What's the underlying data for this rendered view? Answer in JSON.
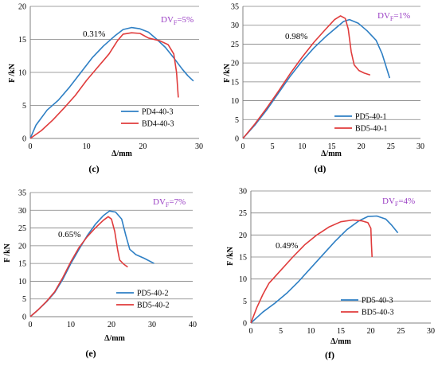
{
  "chart_data": [
    {
      "type": "line",
      "panel_label": "(c)",
      "annotation": "0.31%",
      "dv_label": {
        "prefix": "DV",
        "sub": "F",
        "suffix": "=5%"
      },
      "dv_color": "#9a3fc4",
      "xlabel": "Δ/mm",
      "ylabel": "F /kN",
      "xlim": [
        0,
        30
      ],
      "ylim": [
        0,
        20
      ],
      "xticks": [
        0,
        10,
        20,
        30
      ],
      "yticks": [
        0,
        5,
        10,
        15,
        20
      ],
      "legend_position": "bottom-right",
      "series": [
        {
          "name": "PD4-40-3",
          "color": "#2e7fc4",
          "points": [
            [
              0,
              0
            ],
            [
              1,
              2
            ],
            [
              3,
              4.3
            ],
            [
              5,
              5.8
            ],
            [
              7,
              7.8
            ],
            [
              9,
              10
            ],
            [
              11,
              12.2
            ],
            [
              13,
              14
            ],
            [
              15,
              15.5
            ],
            [
              16.5,
              16.5
            ],
            [
              18,
              16.8
            ],
            [
              19.5,
              16.6
            ],
            [
              21,
              16.1
            ],
            [
              22.5,
              15
            ],
            [
              24,
              13.8
            ],
            [
              25.5,
              12.2
            ],
            [
              27,
              10.5
            ],
            [
              28,
              9.5
            ],
            [
              29,
              8.7
            ]
          ]
        },
        {
          "name": "BD4-40-3",
          "color": "#e03c3c",
          "points": [
            [
              0,
              0
            ],
            [
              2,
              1.2
            ],
            [
              4,
              2.8
            ],
            [
              6,
              4.6
            ],
            [
              8,
              6.5
            ],
            [
              10,
              8.8
            ],
            [
              12,
              10.8
            ],
            [
              14,
              12.8
            ],
            [
              15.5,
              14.8
            ],
            [
              16.5,
              15.8
            ],
            [
              18,
              16
            ],
            [
              19.5,
              15.9
            ],
            [
              21,
              15.2
            ],
            [
              23,
              14.8
            ],
            [
              24.5,
              14.2
            ],
            [
              25.5,
              12.8
            ],
            [
              26,
              10
            ],
            [
              26.3,
              6.2
            ]
          ]
        }
      ]
    },
    {
      "type": "line",
      "panel_label": "(d)",
      "annotation": "0.98%",
      "dv_label": {
        "prefix": "DV",
        "sub": "F",
        "suffix": "=1%"
      },
      "dv_color": "#9a3fc4",
      "xlabel": "Δ/mm",
      "ylabel": "F /kN",
      "xlim": [
        0,
        30
      ],
      "ylim": [
        0,
        35
      ],
      "xticks": [
        0,
        5,
        10,
        15,
        20,
        25,
        30
      ],
      "yticks": [
        0,
        5,
        10,
        15,
        20,
        25,
        30,
        35
      ],
      "legend_position": "bottom-right",
      "series": [
        {
          "name": "PD5-40-1",
          "color": "#2e7fc4",
          "points": [
            [
              0,
              0
            ],
            [
              2,
              3.5
            ],
            [
              4,
              7.5
            ],
            [
              6,
              12
            ],
            [
              8,
              16.5
            ],
            [
              10,
              20.5
            ],
            [
              12,
              24
            ],
            [
              14,
              27
            ],
            [
              15.5,
              29
            ],
            [
              17,
              31
            ],
            [
              18,
              31.5
            ],
            [
              19.5,
              30.5
            ],
            [
              21,
              28.5
            ],
            [
              22.5,
              26
            ],
            [
              23.5,
              22.5
            ],
            [
              24.2,
              19
            ],
            [
              24.8,
              16
            ]
          ]
        },
        {
          "name": "BD5-40-1",
          "color": "#e03c3c",
          "points": [
            [
              0,
              0
            ],
            [
              2,
              3.8
            ],
            [
              4,
              8
            ],
            [
              6,
              12.5
            ],
            [
              8,
              17.2
            ],
            [
              10,
              21.5
            ],
            [
              12,
              25.5
            ],
            [
              14,
              29
            ],
            [
              15.5,
              31.5
            ],
            [
              16.5,
              32.5
            ],
            [
              17.3,
              31.8
            ],
            [
              17.8,
              29
            ],
            [
              18.3,
              23
            ],
            [
              18.8,
              19.5
            ],
            [
              19.6,
              18
            ],
            [
              20.5,
              17.3
            ],
            [
              21.5,
              16.8
            ]
          ]
        }
      ]
    },
    {
      "type": "line",
      "panel_label": "(e)",
      "annotation": "0.65%",
      "dv_label": {
        "prefix": "DV",
        "sub": "F",
        "suffix": "=7%"
      },
      "dv_color": "#9a3fc4",
      "xlabel": "Δ/mm",
      "ylabel": "F /kN",
      "xlim": [
        0,
        40
      ],
      "ylim": [
        0,
        35
      ],
      "xticks": [
        0,
        10,
        20,
        30,
        40
      ],
      "yticks": [
        0,
        5,
        10,
        15,
        20,
        25,
        30,
        35
      ],
      "legend_position": "bottom-right",
      "series": [
        {
          "name": "PD5-40-2",
          "color": "#2e7fc4",
          "points": [
            [
              0,
              0
            ],
            [
              2,
              2
            ],
            [
              4,
              4.2
            ],
            [
              6,
              6.8
            ],
            [
              8,
              10.5
            ],
            [
              10,
              15
            ],
            [
              12,
              19
            ],
            [
              14,
              22.8
            ],
            [
              16,
              26
            ],
            [
              18,
              28.5
            ],
            [
              19.5,
              29.8
            ],
            [
              21,
              29.5
            ],
            [
              22.5,
              27.5
            ],
            [
              23.5,
              23
            ],
            [
              24.5,
              19
            ],
            [
              26,
              17.5
            ],
            [
              28,
              16.5
            ],
            [
              30.5,
              15
            ]
          ]
        },
        {
          "name": "BD5-40-2",
          "color": "#e03c3c",
          "points": [
            [
              0,
              0
            ],
            [
              2,
              2
            ],
            [
              4,
              4.3
            ],
            [
              6,
              7
            ],
            [
              8,
              11
            ],
            [
              10,
              15.5
            ],
            [
              12,
              19.5
            ],
            [
              14,
              22.5
            ],
            [
              16,
              25
            ],
            [
              18,
              27.2
            ],
            [
              19.2,
              28.2
            ],
            [
              20,
              27.5
            ],
            [
              20.8,
              24
            ],
            [
              21.5,
              19
            ],
            [
              22,
              16
            ],
            [
              23,
              14.8
            ],
            [
              24,
              14
            ]
          ]
        }
      ]
    },
    {
      "type": "line",
      "panel_label": "(f)",
      "annotation": "0.49%",
      "dv_label": {
        "prefix": "DV",
        "sub": "F",
        "suffix": "=4%"
      },
      "dv_color": "#9a3fc4",
      "xlabel": "Δ/mm",
      "ylabel": "F /kN",
      "xlim": [
        0,
        30
      ],
      "ylim": [
        0,
        30
      ],
      "xticks": [
        0,
        5,
        10,
        15,
        20,
        25,
        30
      ],
      "yticks": [
        0,
        5,
        10,
        15,
        20,
        25,
        30
      ],
      "legend_position": "bottom-right",
      "series": [
        {
          "name": "PD5-40-3",
          "color": "#2e7fc4",
          "points": [
            [
              0,
              0
            ],
            [
              2,
              2.5
            ],
            [
              4,
              4.5
            ],
            [
              6,
              6.8
            ],
            [
              8,
              9.5
            ],
            [
              10,
              12.5
            ],
            [
              12,
              15.5
            ],
            [
              14,
              18.5
            ],
            [
              16,
              21.2
            ],
            [
              18,
              23.2
            ],
            [
              19.5,
              24.2
            ],
            [
              21,
              24.3
            ],
            [
              22.5,
              23.6
            ],
            [
              23.5,
              22.2
            ],
            [
              24.5,
              20.5
            ]
          ]
        },
        {
          "name": "BD5-40-3",
          "color": "#e03c3c",
          "points": [
            [
              0,
              0
            ],
            [
              1,
              3.5
            ],
            [
              2,
              6.5
            ],
            [
              3,
              9
            ],
            [
              5,
              12
            ],
            [
              7,
              15
            ],
            [
              9,
              17.8
            ],
            [
              11,
              20
            ],
            [
              13,
              21.8
            ],
            [
              15,
              23
            ],
            [
              17,
              23.4
            ],
            [
              18.5,
              23.2
            ],
            [
              19.5,
              22.8
            ],
            [
              20,
              21.5
            ],
            [
              20.1,
              18
            ],
            [
              20.2,
              15
            ]
          ]
        }
      ]
    }
  ]
}
